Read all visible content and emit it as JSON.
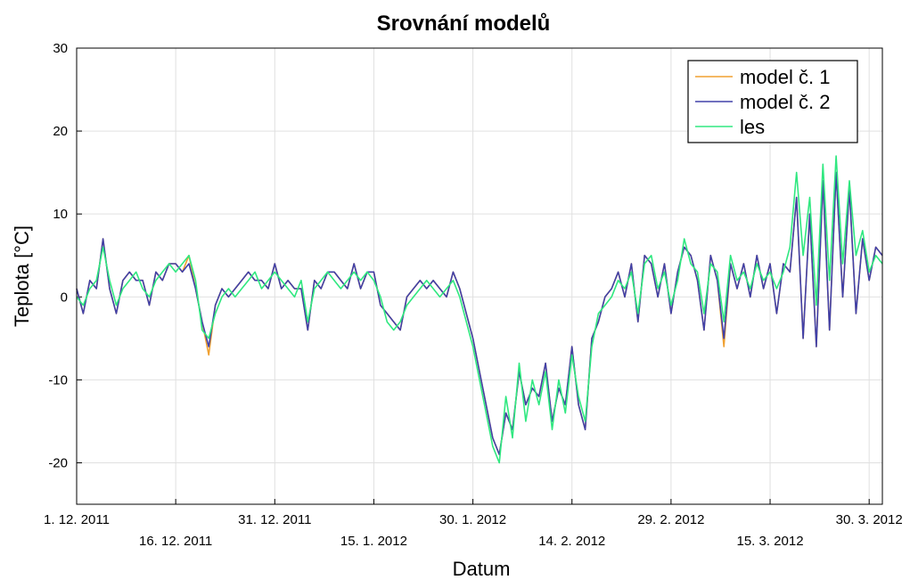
{
  "chart_data": {
    "type": "line",
    "title": "Srovnání modelů",
    "xlabel": "Datum",
    "ylabel": "Teplota [°C]",
    "x": [
      "2011-12-01",
      "2011-12-02",
      "2011-12-03",
      "2011-12-04",
      "2011-12-05",
      "2011-12-06",
      "2011-12-07",
      "2011-12-08",
      "2011-12-09",
      "2011-12-10",
      "2011-12-11",
      "2011-12-12",
      "2011-12-13",
      "2011-12-14",
      "2011-12-15",
      "2011-12-16",
      "2011-12-17",
      "2011-12-18",
      "2011-12-19",
      "2011-12-20",
      "2011-12-21",
      "2011-12-22",
      "2011-12-23",
      "2011-12-24",
      "2011-12-25",
      "2011-12-26",
      "2011-12-27",
      "2011-12-28",
      "2011-12-29",
      "2011-12-30",
      "2011-12-31",
      "2012-01-01",
      "2012-01-02",
      "2012-01-03",
      "2012-01-04",
      "2012-01-05",
      "2012-01-06",
      "2012-01-07",
      "2012-01-08",
      "2012-01-09",
      "2012-01-10",
      "2012-01-11",
      "2012-01-12",
      "2012-01-13",
      "2012-01-14",
      "2012-01-15",
      "2012-01-16",
      "2012-01-17",
      "2012-01-18",
      "2012-01-19",
      "2012-01-20",
      "2012-01-21",
      "2012-01-22",
      "2012-01-23",
      "2012-01-24",
      "2012-01-25",
      "2012-01-26",
      "2012-01-27",
      "2012-01-28",
      "2012-01-29",
      "2012-01-30",
      "2012-01-31",
      "2012-02-01",
      "2012-02-02",
      "2012-02-03",
      "2012-02-04",
      "2012-02-05",
      "2012-02-06",
      "2012-02-07",
      "2012-02-08",
      "2012-02-09",
      "2012-02-10",
      "2012-02-11",
      "2012-02-12",
      "2012-02-13",
      "2012-02-14",
      "2012-02-15",
      "2012-02-16",
      "2012-02-17",
      "2012-02-18",
      "2012-02-19",
      "2012-02-20",
      "2012-02-21",
      "2012-02-22",
      "2012-02-23",
      "2012-02-24",
      "2012-02-25",
      "2012-02-26",
      "2012-02-27",
      "2012-02-28",
      "2012-02-29",
      "2012-03-01",
      "2012-03-02",
      "2012-03-03",
      "2012-03-04",
      "2012-03-05",
      "2012-03-06",
      "2012-03-07",
      "2012-03-08",
      "2012-03-09",
      "2012-03-10",
      "2012-03-11",
      "2012-03-12",
      "2012-03-13",
      "2012-03-14",
      "2012-03-15",
      "2012-03-16",
      "2012-03-17",
      "2012-03-18",
      "2012-03-19",
      "2012-03-20",
      "2012-03-21",
      "2012-03-22",
      "2012-03-23",
      "2012-03-24",
      "2012-03-25",
      "2012-03-26",
      "2012-03-27",
      "2012-03-28",
      "2012-03-29",
      "2012-03-30",
      "2012-03-31",
      "2012-04-01"
    ],
    "series": [
      {
        "name": "model č. 1",
        "color": "#f0a030",
        "values": [
          1,
          -2,
          2,
          1,
          7,
          1,
          -2,
          2,
          3,
          2,
          2,
          -1,
          3,
          2,
          4,
          4,
          3,
          5,
          1,
          -3,
          -7,
          -1,
          1,
          0,
          1,
          2,
          3,
          2,
          2,
          1,
          4,
          1,
          2,
          1,
          1,
          -4,
          2,
          1,
          3,
          3,
          2,
          1,
          4,
          1,
          3,
          3,
          -1,
          -2,
          -3,
          -4,
          0,
          1,
          2,
          1,
          2,
          1,
          0,
          3,
          1,
          -2,
          -5,
          -9,
          -13,
          -17,
          -19,
          -14,
          -16,
          -9,
          -13,
          -11,
          -12,
          -8,
          -15,
          -11,
          -13,
          -6,
          -13,
          -16,
          -5,
          -3,
          0,
          1,
          3,
          0,
          4,
          -3,
          5,
          4,
          0,
          4,
          -2,
          3,
          6,
          5,
          2,
          -4,
          5,
          2,
          -6,
          4,
          1,
          4,
          0,
          5,
          1,
          4,
          -2,
          4,
          3,
          12,
          -5,
          10,
          -6,
          14,
          -4,
          15,
          0,
          13,
          -2,
          7,
          2,
          6,
          5
        ]
      },
      {
        "name": "model č. 2",
        "color": "#4040a8",
        "values": [
          1,
          -2,
          2,
          1,
          7,
          1,
          -2,
          2,
          3,
          2,
          2,
          -1,
          3,
          2,
          4,
          4,
          3,
          4,
          1,
          -3,
          -6,
          -1,
          1,
          0,
          1,
          2,
          3,
          2,
          2,
          1,
          4,
          1,
          2,
          1,
          1,
          -4,
          2,
          1,
          3,
          3,
          2,
          1,
          4,
          1,
          3,
          3,
          -1,
          -2,
          -3,
          -4,
          0,
          1,
          2,
          1,
          2,
          1,
          0,
          3,
          1,
          -2,
          -5,
          -9,
          -13,
          -17,
          -19,
          -14,
          -16,
          -9,
          -13,
          -11,
          -12,
          -8,
          -15,
          -11,
          -13,
          -6,
          -13,
          -16,
          -5,
          -3,
          0,
          1,
          3,
          0,
          4,
          -3,
          5,
          4,
          0,
          4,
          -2,
          3,
          6,
          5,
          2,
          -4,
          5,
          2,
          -5,
          4,
          1,
          4,
          0,
          5,
          1,
          4,
          -2,
          4,
          3,
          12,
          -5,
          10,
          -6,
          14,
          -4,
          15,
          0,
          13,
          -2,
          7,
          2,
          6,
          5
        ]
      },
      {
        "name": "les",
        "color": "#30e880",
        "values": [
          0,
          -1,
          1,
          2,
          6,
          2,
          -1,
          1,
          2,
          3,
          1,
          0,
          2,
          3,
          4,
          3,
          4,
          5,
          2,
          -4,
          -5,
          -2,
          0,
          1,
          0,
          1,
          2,
          3,
          1,
          2,
          3,
          2,
          1,
          0,
          2,
          -3,
          1,
          2,
          3,
          2,
          1,
          2,
          3,
          2,
          3,
          2,
          0,
          -3,
          -4,
          -3,
          -1,
          0,
          1,
          2,
          1,
          0,
          1,
          2,
          0,
          -3,
          -6,
          -10,
          -14,
          -18,
          -20,
          -12,
          -17,
          -8,
          -15,
          -10,
          -13,
          -9,
          -16,
          -10,
          -14,
          -7,
          -12,
          -15,
          -6,
          -2,
          -1,
          0,
          2,
          1,
          3,
          -2,
          4,
          5,
          1,
          3,
          -1,
          2,
          7,
          4,
          3,
          -2,
          4,
          3,
          -3,
          5,
          2,
          3,
          1,
          4,
          2,
          3,
          1,
          3,
          6,
          15,
          5,
          12,
          -1,
          16,
          2,
          17,
          4,
          14,
          5,
          8,
          3,
          5,
          4
        ]
      }
    ],
    "xlim": [
      "2011-12-01",
      "2012-04-01"
    ],
    "xticks": [
      {
        "value": "2011-12-01",
        "label": "1. 12. 2011"
      },
      {
        "value": "2011-12-16",
        "label": "16. 12. 2011"
      },
      {
        "value": "2011-12-31",
        "label": "31. 12. 2011"
      },
      {
        "value": "2012-01-15",
        "label": "15. 1. 2012"
      },
      {
        "value": "2012-01-30",
        "label": "30. 1. 2012"
      },
      {
        "value": "2012-02-14",
        "label": "14. 2. 2012"
      },
      {
        "value": "2012-02-29",
        "label": "29. 2. 2012"
      },
      {
        "value": "2012-03-15",
        "label": "15. 3. 2012"
      },
      {
        "value": "2012-03-30",
        "label": "30. 3. 2012"
      }
    ],
    "ylim": [
      -25,
      30
    ],
    "yticks": [
      -20,
      -10,
      0,
      10,
      20,
      30
    ],
    "grid": true,
    "legend": "upper-right"
  }
}
